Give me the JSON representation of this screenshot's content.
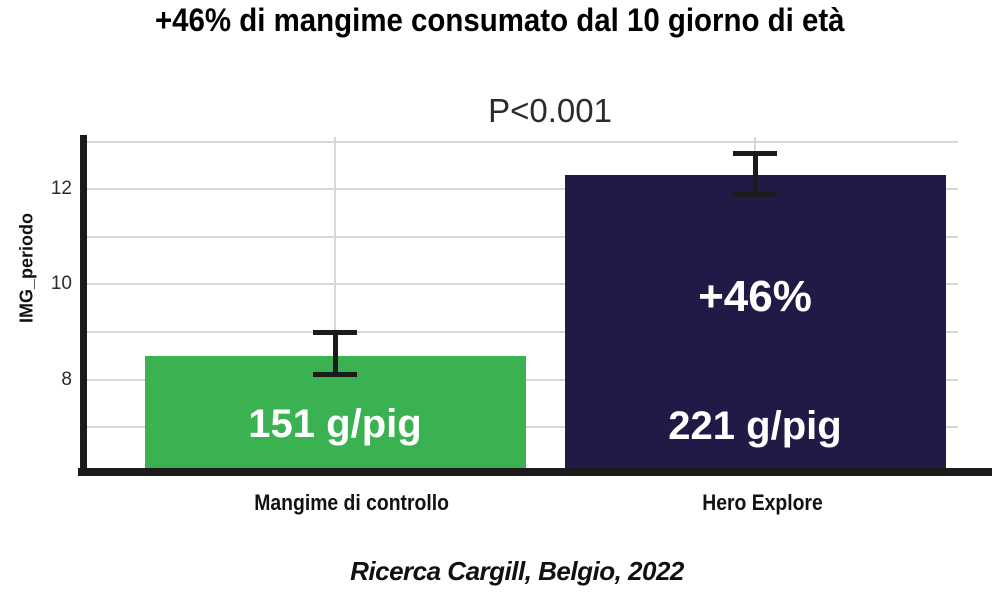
{
  "chart_data": {
    "type": "bar",
    "title": "+46% di mangime consumato dal 10 giorno di età",
    "significance_annotation": "P<0.001",
    "ylabel": "IMG_periodo",
    "xlabel": "",
    "source": "Ricerca Cargill, Belgio, 2022",
    "categories": [
      "Mangime di controllo",
      "Hero Explore"
    ],
    "values": [
      8.5,
      12.3
    ],
    "error_low": [
      8.1,
      11.9
    ],
    "error_high": [
      9.0,
      12.75
    ],
    "bar_value_labels": [
      "151 g/pig",
      "221 g/pig"
    ],
    "bar_annotations": [
      "",
      "+46%"
    ],
    "bar_colors": [
      "#3ab252",
      "#201a46"
    ],
    "yticks": [
      8,
      10,
      12
    ],
    "gridline_values": [
      7,
      8,
      9,
      10,
      11,
      12,
      13
    ],
    "ylim": [
      6.1,
      13.1
    ],
    "legend": "none",
    "grid": "horizontal lines every 1 unit, plus vertical line at each bar center"
  },
  "colors": {
    "bar_control": "#3ab252",
    "bar_hero": "#201a46",
    "axis": "#1b1b1b",
    "gridline": "#d7d7d7",
    "bar_label_text": "#ffffff",
    "title_text": "#000000",
    "annotation_text": "#2b2b2b"
  }
}
